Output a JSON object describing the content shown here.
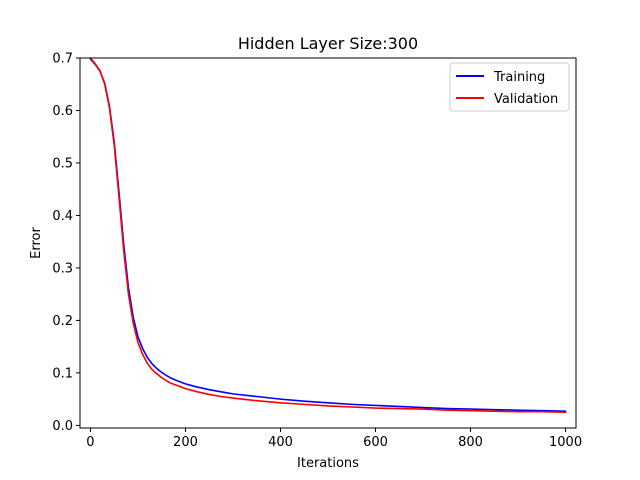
{
  "chart_data": {
    "type": "line",
    "title": "Hidden Layer Size:300",
    "xlabel": "Iterations",
    "ylabel": "Error",
    "xlim": [
      -22,
      1022
    ],
    "ylim": [
      -0.005,
      0.7
    ],
    "xticks": [
      0,
      200,
      400,
      600,
      800,
      1000
    ],
    "xtick_labels": [
      "0",
      "200",
      "400",
      "600",
      "800",
      "1000"
    ],
    "yticks": [
      0.0,
      0.1,
      0.2,
      0.3,
      0.4,
      0.5,
      0.6,
      0.7
    ],
    "ytick_labels": [
      "0.0",
      "0.1",
      "0.2",
      "0.3",
      "0.4",
      "0.5",
      "0.6",
      "0.7"
    ],
    "grid": false,
    "legend_position": "top-right",
    "series": [
      {
        "name": "Training",
        "color": "#0000ff",
        "x": [
          0,
          10,
          20,
          30,
          40,
          50,
          60,
          70,
          80,
          90,
          100,
          110,
          120,
          130,
          140,
          150,
          160,
          170,
          180,
          200,
          225,
          250,
          275,
          300,
          350,
          400,
          450,
          500,
          550,
          600,
          650,
          700,
          750,
          800,
          850,
          900,
          950,
          1000
        ],
        "values": [
          0.698,
          0.688,
          0.675,
          0.652,
          0.608,
          0.54,
          0.445,
          0.345,
          0.262,
          0.206,
          0.169,
          0.146,
          0.129,
          0.117,
          0.108,
          0.101,
          0.095,
          0.09,
          0.086,
          0.079,
          0.073,
          0.068,
          0.064,
          0.06,
          0.055,
          0.05,
          0.046,
          0.043,
          0.04,
          0.038,
          0.036,
          0.034,
          0.032,
          0.031,
          0.03,
          0.029,
          0.028,
          0.027
        ]
      },
      {
        "name": "Validation",
        "color": "#ff0000",
        "x": [
          0,
          10,
          20,
          30,
          40,
          50,
          60,
          70,
          80,
          90,
          100,
          110,
          120,
          130,
          140,
          150,
          160,
          170,
          180,
          200,
          225,
          250,
          275,
          300,
          350,
          400,
          450,
          500,
          550,
          600,
          650,
          700,
          750,
          800,
          850,
          900,
          950,
          1000
        ],
        "values": [
          0.7,
          0.689,
          0.676,
          0.65,
          0.605,
          0.534,
          0.436,
          0.333,
          0.25,
          0.195,
          0.158,
          0.135,
          0.118,
          0.106,
          0.098,
          0.091,
          0.085,
          0.08,
          0.077,
          0.07,
          0.064,
          0.059,
          0.055,
          0.052,
          0.047,
          0.043,
          0.04,
          0.037,
          0.035,
          0.033,
          0.032,
          0.031,
          0.029,
          0.028,
          0.027,
          0.026,
          0.026,
          0.025
        ]
      }
    ]
  }
}
